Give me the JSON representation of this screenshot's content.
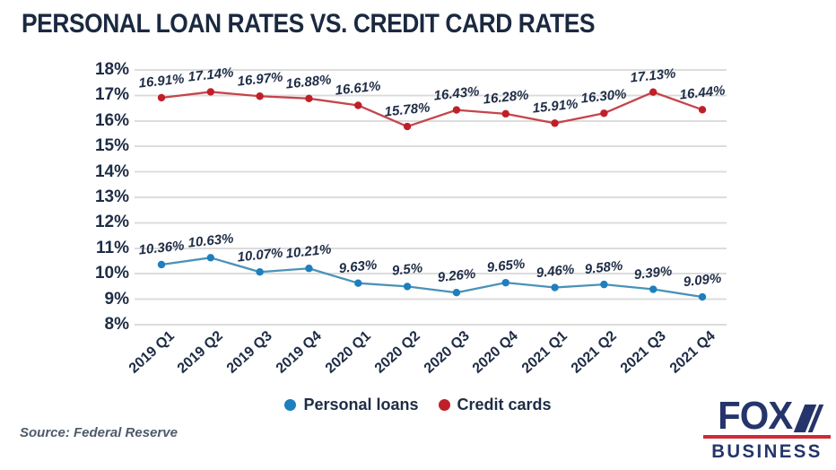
{
  "title": "PERSONAL LOAN RATES VS. CREDIT CARD RATES",
  "source_note": "Source: Federal Reserve",
  "logo": {
    "fox": "FOX",
    "business": "BUSINESS"
  },
  "colors": {
    "background": "#ffffff",
    "title_text": "#1b2940",
    "axis_text": "#1e2c46",
    "gridline": "#dcdcdc",
    "personal_loans_line": "#4a92b8",
    "personal_loans_dot": "#1e7ebe",
    "credit_cards_line": "#c4454c",
    "credit_cards_dot": "#bf2028",
    "logo_navy": "#25356b",
    "logo_red": "#ce2b37"
  },
  "chart_data": {
    "type": "line",
    "title": "PERSONAL LOAN RATES VS. CREDIT CARD RATES",
    "xlabel": "",
    "ylabel": "",
    "ylim": [
      8,
      18
    ],
    "grid": true,
    "legend_position": "bottom",
    "ytick_labels": [
      "18%",
      "17%",
      "16%",
      "15%",
      "14%",
      "13%",
      "12%",
      "11%",
      "10%",
      "9%",
      "8%"
    ],
    "categories": [
      "2019 Q1",
      "2019 Q2",
      "2019 Q3",
      "2019 Q4",
      "2020 Q1",
      "2020 Q2",
      "2020 Q3",
      "2020 Q4",
      "2021 Q1",
      "2021 Q2",
      "2021 Q3",
      "2021 Q4"
    ],
    "series": [
      {
        "name": "Personal loans",
        "line_color": "#4a92b8",
        "dot_color": "#1e7ebe",
        "values": [
          10.36,
          10.63,
          10.07,
          10.21,
          9.63,
          9.5,
          9.26,
          9.65,
          9.46,
          9.58,
          9.39,
          9.09
        ],
        "display": [
          "10.36%",
          "10.63%",
          "10.07%",
          "10.21%",
          "9.63%",
          "9.5%",
          "9.26%",
          "9.65%",
          "9.46%",
          "9.58%",
          "9.39%",
          "9.09%"
        ]
      },
      {
        "name": "Credit cards",
        "line_color": "#c4454c",
        "dot_color": "#bf2028",
        "values": [
          16.91,
          17.14,
          16.97,
          16.88,
          16.61,
          15.78,
          16.43,
          16.28,
          15.91,
          16.3,
          17.13,
          16.44
        ],
        "display": [
          "16.91%",
          "17.14%",
          "16.97%",
          "16.88%",
          "16.61%",
          "15.78%",
          "16.43%",
          "16.28%",
          "15.91%",
          "16.30%",
          "17.13%",
          "16.44%"
        ]
      }
    ]
  }
}
